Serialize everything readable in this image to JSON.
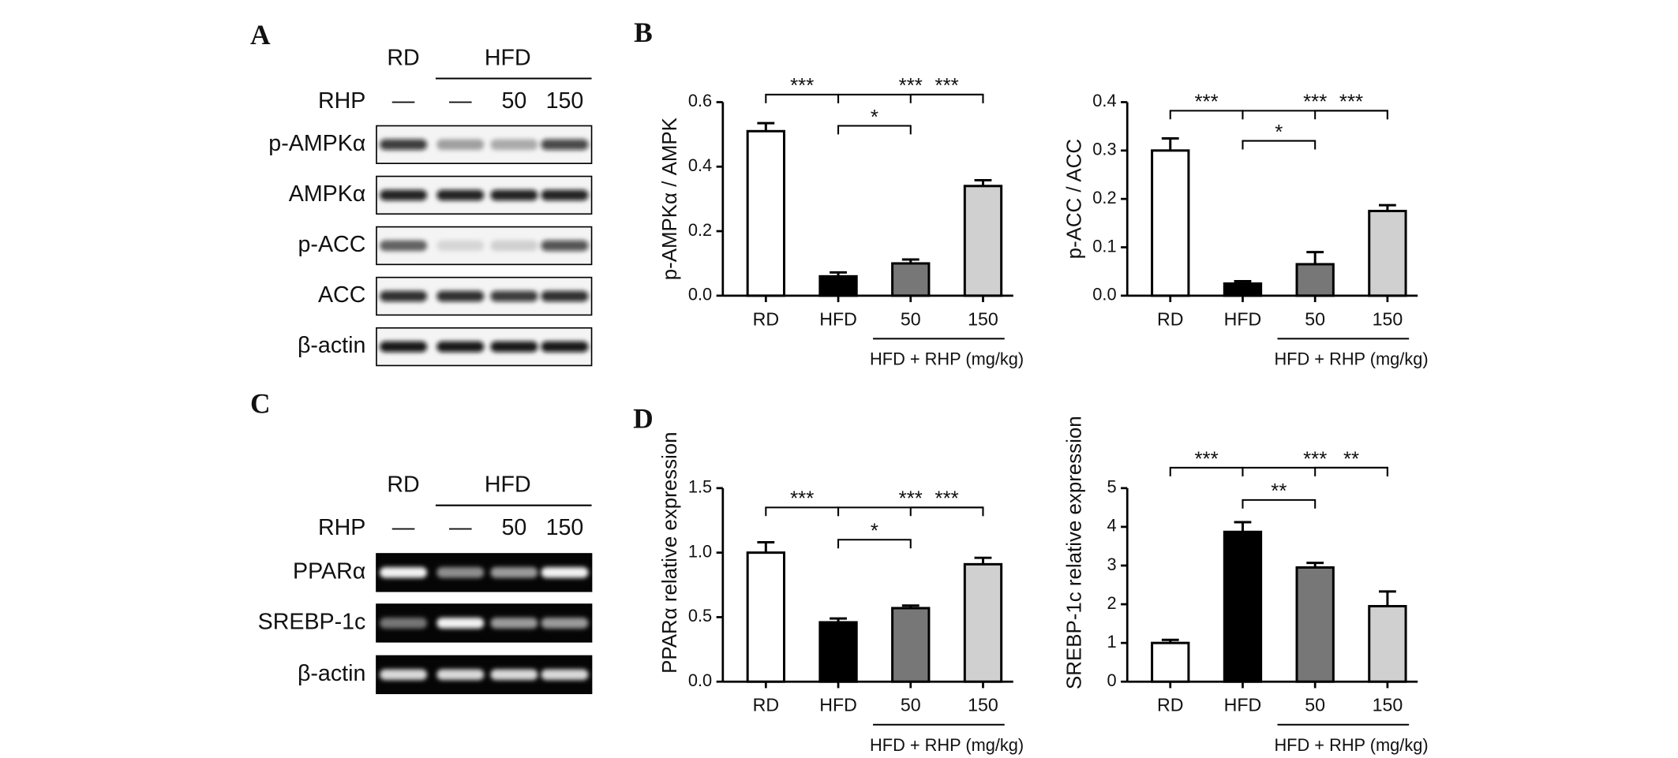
{
  "blots": [
    {
      "label": "A",
      "groups": [
        "RD",
        "HFD"
      ],
      "treatment": "RHP",
      "doses": [
        "—",
        "—",
        "50",
        "150"
      ],
      "rows": [
        "p-AMPKα",
        "AMPKα",
        "p-ACC",
        "ACC",
        "β-actin"
      ]
    },
    {
      "label": "C",
      "groups": [
        "RD",
        "HFD"
      ],
      "treatment": "RHP",
      "doses": [
        "—",
        "—",
        "50",
        "150"
      ],
      "rows": [
        "PPARα",
        "SREBP-1c",
        "β-actin"
      ]
    }
  ],
  "chart_data": [
    {
      "type": "bar",
      "panel": "B",
      "ylabel": "p-AMPKα  / AMPK",
      "categories": [
        "RD",
        "HFD",
        "50",
        "150"
      ],
      "values": [
        0.51,
        0.06,
        0.1,
        0.34
      ],
      "errors": [
        0.025,
        0.012,
        0.012,
        0.018
      ],
      "colors": [
        "#ffffff",
        "#000000",
        "#777777",
        "#d0d0d0"
      ],
      "ylim": [
        0,
        0.6
      ],
      "yticks": [
        {
          "value": 0,
          "label": "0.0"
        },
        0.2,
        0.4,
        0.6
      ],
      "group_label": "HFD + RHP (mg/kg)",
      "annotations": [
        {
          "text": "***",
          "between": [
            "RD",
            "HFD"
          ]
        },
        {
          "text": "***",
          "between": [
            "HFD",
            "150"
          ]
        },
        {
          "text": "*",
          "between": [
            "HFD",
            "50"
          ]
        },
        {
          "text": "***",
          "between": [
            "50",
            "150"
          ]
        }
      ]
    },
    {
      "type": "bar",
      "ylabel": "p-ACC / ACC",
      "categories": [
        "RD",
        "HFD",
        "50",
        "150"
      ],
      "values": [
        0.3,
        0.025,
        0.065,
        0.175
      ],
      "errors": [
        0.025,
        0.005,
        0.025,
        0.012
      ],
      "colors": [
        "#ffffff",
        "#000000",
        "#777777",
        "#d0d0d0"
      ],
      "ylim": [
        0,
        0.4
      ],
      "yticks": [
        {
          "value": 0,
          "label": "0.0"
        },
        0.1,
        0.2,
        0.3,
        0.4
      ],
      "group_label": "HFD + RHP (mg/kg)",
      "annotations": [
        {
          "text": "***",
          "between": [
            "RD",
            "HFD"
          ]
        },
        {
          "text": "***",
          "between": [
            "HFD",
            "150"
          ]
        },
        {
          "text": "*",
          "between": [
            "HFD",
            "50"
          ]
        },
        {
          "text": "***",
          "between": [
            "50",
            "150"
          ]
        }
      ]
    },
    {
      "type": "bar",
      "panel": "D",
      "ylabel": "PPARα  relative expression",
      "categories": [
        "RD",
        "HFD",
        "50",
        "150"
      ],
      "values": [
        1.0,
        0.46,
        0.57,
        0.91
      ],
      "errors": [
        0.08,
        0.03,
        0.02,
        0.05
      ],
      "colors": [
        "#ffffff",
        "#000000",
        "#777777",
        "#d0d0d0"
      ],
      "ylim": [
        0,
        1.5
      ],
      "yticks": [
        {
          "value": 0,
          "label": "0.0"
        },
        0.5,
        {
          "value": 1,
          "label": "1.0"
        },
        1.5
      ],
      "group_label": "HFD + RHP (mg/kg)",
      "annotations": [
        {
          "text": "***",
          "between": [
            "RD",
            "HFD"
          ]
        },
        {
          "text": "***",
          "between": [
            "HFD",
            "150"
          ]
        },
        {
          "text": "*",
          "between": [
            "HFD",
            "50"
          ]
        },
        {
          "text": "***",
          "between": [
            "50",
            "150"
          ]
        }
      ]
    },
    {
      "type": "bar",
      "ylabel": "SREBP-1c relative expression",
      "categories": [
        "RD",
        "HFD",
        "50",
        "150"
      ],
      "values": [
        1.0,
        3.87,
        2.95,
        1.95
      ],
      "errors": [
        0.08,
        0.25,
        0.12,
        0.38
      ],
      "colors": [
        "#ffffff",
        "#000000",
        "#777777",
        "#d0d0d0"
      ],
      "ylim": [
        0,
        5
      ],
      "yticks": [
        0,
        1,
        2,
        3,
        4,
        5
      ],
      "group_label": "HFD + RHP (mg/kg)",
      "annotations": [
        {
          "text": "***",
          "between": [
            "RD",
            "HFD"
          ]
        },
        {
          "text": "***",
          "between": [
            "HFD",
            "150"
          ]
        },
        {
          "text": "**",
          "between": [
            "HFD",
            "50"
          ]
        },
        {
          "text": "**",
          "between": [
            "50",
            "150"
          ]
        }
      ]
    }
  ]
}
